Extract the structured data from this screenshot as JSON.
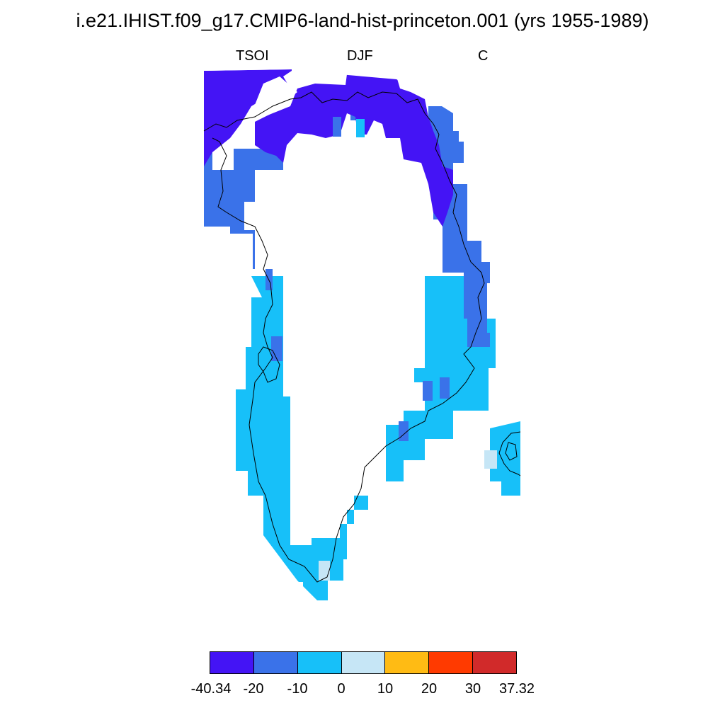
{
  "title": "i.e21.IHIST.f09_g17.CMIP6-land-hist-princeton.001 (yrs 1955-1989)",
  "labels": {
    "left": "TSOI",
    "center": "DJF",
    "right": "C"
  },
  "colors": {
    "lt_minus20": "#4414f5",
    "minus20_minus10": "#3a72e9",
    "minus10_0": "#17c0f9",
    "zero_10": "#c6e6f6",
    "ten_20": "#ffbb14",
    "twenty_30": "#ff3a00",
    "gt_30": "#d12a2a"
  },
  "colorbar": {
    "colors": [
      "#4414f5",
      "#3a72e9",
      "#17c0f9",
      "#c6e6f6",
      "#ffbb14",
      "#ff3a00",
      "#d12a2a"
    ],
    "labels": [
      "-40.34",
      "-20",
      "-10",
      "0",
      "10",
      "20",
      "30",
      "37.32"
    ]
  }
}
